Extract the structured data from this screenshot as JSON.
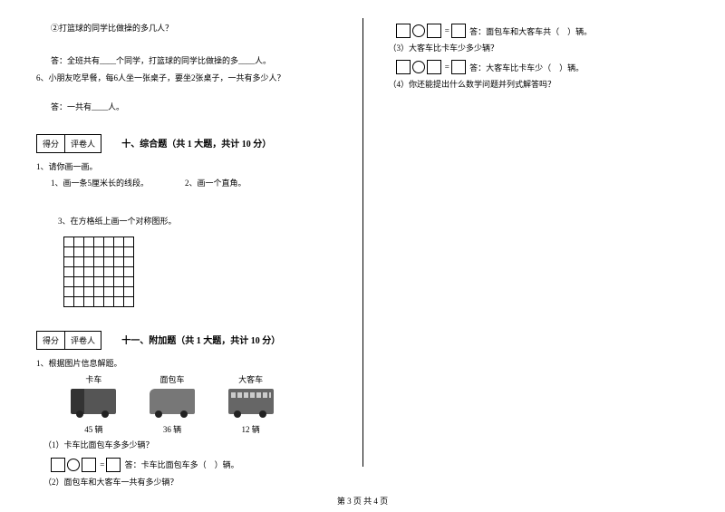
{
  "left": {
    "q_circle2": "②打篮球的同学比做操的多几人？",
    "ans_a": "答：全班共有____个同学，打篮球的同学比做操的多____人。",
    "q6": "6、小朋友吃早餐，每6人坐一张桌子，要坐2张桌子，一共有多少人？",
    "ans6": "答：一共有____人。",
    "score_label1": "得分",
    "score_label2": "评卷人",
    "sec10_title": "十、综合题（共 1 大题，共计 10 分）",
    "sec10_q1": "1、请你画一画。",
    "sec10_q1_1": "1、画一条5厘米长的线段。",
    "sec10_q1_2": "2、画一个直角。",
    "sec10_q1_3": "3、在方格纸上画一个对称图形。",
    "sec11_title": "十一、附加题（共 1 大题，共计 10 分）",
    "sec11_q1": "1、根据图片信息解题。",
    "veh_truck_label": "卡车",
    "veh_van_label": "面包车",
    "veh_bus_label": "大客车",
    "veh_truck_count": "45 辆",
    "veh_van_count": "36 辆",
    "veh_bus_count": "12 辆",
    "sub1": "（1）卡车比面包车多多少辆？",
    "sub1_ans": "答：卡车比面包车多（　）辆。",
    "sub2": "（2）面包车和大客车一共有多少辆？"
  },
  "right": {
    "sub2_ans": "答：面包车和大客车共（　）辆。",
    "sub3": "（3）大客车比卡车少多少辆？",
    "sub3_ans": "答：大客车比卡车少（　）辆。",
    "sub4": "（4）你还能提出什么数学问题并列式解答吗？"
  },
  "footer": "第 3 页 共 4 页",
  "grid": {
    "rows": 7,
    "cols": 7
  }
}
